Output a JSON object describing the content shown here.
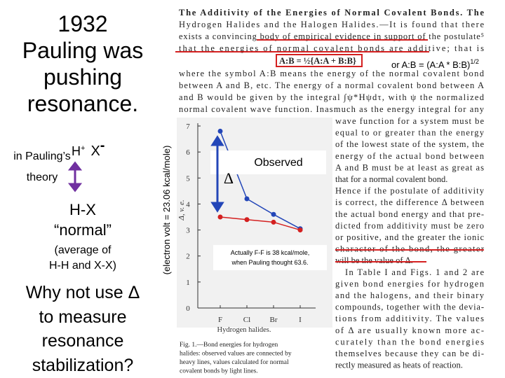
{
  "slide": {
    "title_lines": [
      "1932",
      "Pauling was",
      "pushing",
      "resonance."
    ],
    "theory_lines": [
      "in Pauling’s",
      "theory"
    ],
    "ion_h": "H",
    "ion_h_charge": "+",
    "ion_x": "X",
    "ion_x_charge": "-",
    "delta": "Δ",
    "normal_lines": [
      "H-X",
      "“normal”"
    ],
    "average_lines": [
      "(average of",
      "H-H and X-X)"
    ],
    "question_lines": [
      "Why not use Δ",
      "to measure",
      "resonance",
      "stabilization?"
    ],
    "units_note": "(electron volt = 23.06 kcal/mole)",
    "geo_mean": "or A:B = (A:A * B:B)",
    "geo_mean_exp": "1/2",
    "observed": "Observed",
    "correction_lines": [
      "Actually F-F is 38 kcal/mole,",
      "when Pauling thought 63.6."
    ]
  },
  "paper": {
    "top_lines": [
      "The Additivity of the Energies of Normal Covalent Bonds. The",
      "Hydrogen Halides and the Halogen Halides.—It is found that there",
      "exists a convincing body of empirical evidence in support of the postulate⁵",
      "that the energies of normal covalent bonds are additive; that is"
    ],
    "formula": "A:B = ½{A:A + B:B}",
    "middle_lines": [
      "where the symbol A:B means the energy of the normal covalent bond",
      "between A and B, etc. The energy of a normal covalent bond between A",
      "and B would be given by the integral ∫ψ*Hψdτ, with ψ the normalized",
      "normal covalent wave function. Inasmuch as the energy integral for any"
    ],
    "right_lines": [
      "wave function for a system must be",
      "equal to or greater than the energy",
      "of the lowest state of the system, the",
      "energy of the actual bond between",
      "A and B must be at least as great as",
      "that for a normal covalent bond.",
      "Hence if the postulate of additivity",
      "is correct, the difference Δ between",
      "the actual bond energy and that pre-",
      "dicted from additivity must be zero",
      "or positive, and the greater the ionic",
      "character of the bond, the greater",
      "will be the value of Δ.",
      "In Table I and Figs. 1 and 2 are",
      "given bond energies for hydrogen",
      "and the halogens, and their binary",
      "compounds, together with the devia-",
      "tions from additivity. The values",
      "of Δ are usually known more ac-",
      "curately than the bond energies",
      "themselves because they can be di-",
      "rectly measured as heats of reaction."
    ],
    "caption_lines": [
      "Fig. 1.—Bond energies for hydrogen",
      "halides: observed values are connected by",
      "heavy lines, values calculated for normal",
      "covalent bonds by light lines."
    ]
  },
  "figure": {
    "type": "line",
    "y_label": "Δ, v. e.",
    "x_label": "Hydrogen halides.",
    "categories": [
      "F",
      "Cl",
      "Br",
      "I"
    ],
    "series": [
      {
        "color": "#2346b8",
        "values": [
          6.8,
          4.2,
          3.6,
          3.05
        ]
      },
      {
        "color": "#d42020",
        "values": [
          3.5,
          3.4,
          3.3,
          3.0
        ]
      }
    ],
    "ylim": [
      0,
      7
    ],
    "yticks": [
      0,
      1,
      2,
      3,
      4,
      5,
      6,
      7
    ]
  }
}
